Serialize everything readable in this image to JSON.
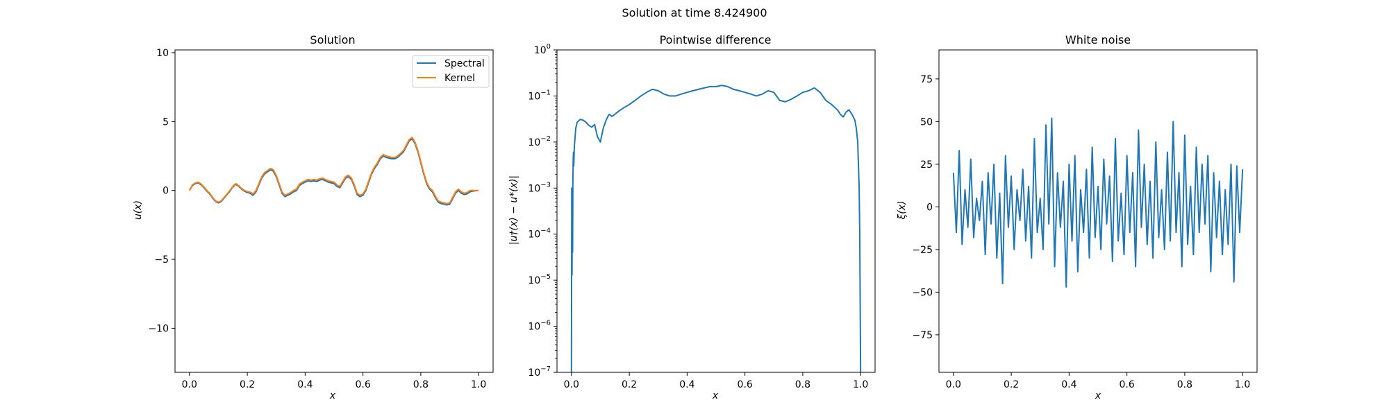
{
  "suptitle": "Solution at time 8.424900",
  "chart_data": [
    {
      "type": "line",
      "title": "Solution",
      "xlabel": "x",
      "ylabel": "u(x)",
      "xlim": [
        -0.05,
        1.05
      ],
      "ylim": [
        -13.2,
        10.2
      ],
      "xticks": [
        0.0,
        0.2,
        0.4,
        0.6,
        0.8,
        1.0
      ],
      "xtick_labels": [
        "0.0",
        "0.2",
        "0.4",
        "0.6",
        "0.8",
        "1.0"
      ],
      "yticks": [
        -10,
        -5,
        0,
        5,
        10
      ],
      "ytick_labels": [
        "−10",
        "−5",
        "0",
        "5",
        "10"
      ],
      "legend_position": "upper-right",
      "grid": false,
      "series": [
        {
          "name": "Spectral",
          "color": "#1f77b4",
          "x": [
            0.0,
            0.01,
            0.02,
            0.03,
            0.04,
            0.05,
            0.06,
            0.07,
            0.08,
            0.09,
            0.1,
            0.11,
            0.12,
            0.13,
            0.14,
            0.15,
            0.16,
            0.17,
            0.18,
            0.19,
            0.2,
            0.21,
            0.22,
            0.23,
            0.24,
            0.25,
            0.26,
            0.27,
            0.28,
            0.29,
            0.3,
            0.31,
            0.32,
            0.33,
            0.34,
            0.35,
            0.36,
            0.37,
            0.38,
            0.39,
            0.4,
            0.41,
            0.42,
            0.43,
            0.44,
            0.45,
            0.46,
            0.47,
            0.48,
            0.49,
            0.5,
            0.51,
            0.52,
            0.53,
            0.54,
            0.55,
            0.56,
            0.57,
            0.58,
            0.59,
            0.6,
            0.61,
            0.62,
            0.63,
            0.64,
            0.65,
            0.66,
            0.67,
            0.68,
            0.69,
            0.7,
            0.71,
            0.72,
            0.73,
            0.74,
            0.75,
            0.76,
            0.77,
            0.78,
            0.79,
            0.8,
            0.81,
            0.82,
            0.83,
            0.84,
            0.85,
            0.86,
            0.87,
            0.88,
            0.89,
            0.9,
            0.91,
            0.92,
            0.93,
            0.94,
            0.95,
            0.96,
            0.97,
            0.98,
            0.99,
            1.0
          ],
          "y": [
            0.0,
            0.35,
            0.5,
            0.55,
            0.42,
            0.2,
            -0.05,
            -0.25,
            -0.55,
            -0.8,
            -0.9,
            -0.8,
            -0.55,
            -0.3,
            -0.05,
            0.25,
            0.45,
            0.3,
            0.1,
            -0.05,
            -0.15,
            -0.2,
            -0.35,
            -0.1,
            0.4,
            0.9,
            1.2,
            1.35,
            1.5,
            1.4,
            1.0,
            0.4,
            -0.2,
            -0.45,
            -0.35,
            -0.25,
            -0.1,
            0.0,
            0.35,
            0.5,
            0.6,
            0.7,
            0.65,
            0.7,
            0.65,
            0.75,
            0.8,
            0.7,
            0.6,
            0.55,
            0.5,
            0.3,
            0.2,
            0.55,
            0.9,
            1.0,
            0.8,
            0.3,
            -0.3,
            -0.45,
            -0.35,
            0.0,
            0.6,
            1.2,
            1.6,
            1.9,
            2.3,
            2.5,
            2.4,
            2.35,
            2.3,
            2.3,
            2.4,
            2.6,
            2.8,
            3.2,
            3.6,
            3.75,
            3.4,
            2.8,
            2.0,
            1.2,
            0.5,
            0.1,
            -0.1,
            -0.5,
            -0.85,
            -0.95,
            -1.0,
            -1.05,
            -1.0,
            -0.6,
            -0.2,
            0.0,
            -0.2,
            -0.3,
            -0.25,
            -0.1,
            -0.05,
            -0.02,
            0.0
          ]
        },
        {
          "name": "Kernel",
          "color": "#ff7f0e",
          "x": [
            0.0,
            0.01,
            0.02,
            0.03,
            0.04,
            0.05,
            0.06,
            0.07,
            0.08,
            0.09,
            0.1,
            0.11,
            0.12,
            0.13,
            0.14,
            0.15,
            0.16,
            0.17,
            0.18,
            0.19,
            0.2,
            0.21,
            0.22,
            0.23,
            0.24,
            0.25,
            0.26,
            0.27,
            0.28,
            0.29,
            0.3,
            0.31,
            0.32,
            0.33,
            0.34,
            0.35,
            0.36,
            0.37,
            0.38,
            0.39,
            0.4,
            0.41,
            0.42,
            0.43,
            0.44,
            0.45,
            0.46,
            0.47,
            0.48,
            0.49,
            0.5,
            0.51,
            0.52,
            0.53,
            0.54,
            0.55,
            0.56,
            0.57,
            0.58,
            0.59,
            0.6,
            0.61,
            0.62,
            0.63,
            0.64,
            0.65,
            0.66,
            0.67,
            0.68,
            0.69,
            0.7,
            0.71,
            0.72,
            0.73,
            0.74,
            0.75,
            0.76,
            0.77,
            0.78,
            0.79,
            0.8,
            0.81,
            0.82,
            0.83,
            0.84,
            0.85,
            0.86,
            0.87,
            0.88,
            0.89,
            0.9,
            0.91,
            0.92,
            0.93,
            0.94,
            0.95,
            0.96,
            0.97,
            0.98,
            0.99,
            1.0
          ],
          "y": [
            0.0,
            0.4,
            0.55,
            0.6,
            0.48,
            0.25,
            0.0,
            -0.2,
            -0.5,
            -0.75,
            -0.85,
            -0.75,
            -0.5,
            -0.25,
            0.0,
            0.3,
            0.5,
            0.35,
            0.15,
            0.0,
            -0.08,
            -0.12,
            -0.25,
            0.0,
            0.5,
            1.0,
            1.3,
            1.45,
            1.6,
            1.5,
            1.1,
            0.5,
            -0.1,
            -0.35,
            -0.25,
            -0.15,
            0.0,
            0.1,
            0.45,
            0.6,
            0.7,
            0.8,
            0.75,
            0.8,
            0.75,
            0.85,
            0.9,
            0.8,
            0.7,
            0.65,
            0.6,
            0.4,
            0.3,
            0.65,
            1.0,
            1.1,
            0.9,
            0.4,
            -0.2,
            -0.35,
            -0.25,
            0.1,
            0.7,
            1.3,
            1.7,
            2.0,
            2.4,
            2.6,
            2.5,
            2.45,
            2.4,
            2.4,
            2.5,
            2.7,
            2.9,
            3.3,
            3.7,
            3.85,
            3.5,
            2.9,
            2.1,
            1.3,
            0.6,
            0.2,
            0.0,
            -0.4,
            -0.75,
            -0.85,
            -0.9,
            -0.95,
            -0.9,
            -0.5,
            -0.1,
            0.1,
            -0.1,
            -0.2,
            -0.15,
            0.0,
            0.0,
            0.0,
            0.0
          ]
        }
      ]
    },
    {
      "type": "line",
      "title": "Pointwise difference",
      "xlabel": "x",
      "ylabel": "|u†(x) − u*(x)|",
      "yscale": "log",
      "xlim": [
        -0.05,
        1.05
      ],
      "ylim": [
        1e-07,
        1
      ],
      "xticks": [
        0.0,
        0.2,
        0.4,
        0.6,
        0.8,
        1.0
      ],
      "xtick_labels": [
        "0.0",
        "0.2",
        "0.4",
        "0.6",
        "0.8",
        "1.0"
      ],
      "yticks": [
        1e-07,
        1e-06,
        1e-05,
        0.0001,
        0.001,
        0.01,
        0.1,
        1
      ],
      "ytick_bases": [
        "10",
        "10",
        "10",
        "10",
        "10",
        "10",
        "10",
        "10"
      ],
      "ytick_exponents": [
        "−7",
        "−6",
        "−5",
        "−4",
        "−3",
        "−2",
        "−1",
        "0"
      ],
      "grid": false,
      "series": [
        {
          "name": "",
          "color": "#1f77b4",
          "x": [
            0.0,
            0.001,
            0.002,
            0.003,
            0.004,
            0.005,
            0.006,
            0.007,
            0.008,
            0.01,
            0.015,
            0.02,
            0.03,
            0.04,
            0.05,
            0.06,
            0.07,
            0.08,
            0.09,
            0.1,
            0.11,
            0.12,
            0.13,
            0.14,
            0.15,
            0.16,
            0.17,
            0.18,
            0.19,
            0.2,
            0.22,
            0.24,
            0.26,
            0.28,
            0.3,
            0.32,
            0.34,
            0.36,
            0.38,
            0.4,
            0.42,
            0.44,
            0.46,
            0.48,
            0.5,
            0.52,
            0.54,
            0.56,
            0.58,
            0.6,
            0.62,
            0.64,
            0.66,
            0.68,
            0.7,
            0.72,
            0.74,
            0.76,
            0.78,
            0.8,
            0.82,
            0.84,
            0.86,
            0.88,
            0.9,
            0.92,
            0.93,
            0.94,
            0.95,
            0.96,
            0.97,
            0.98,
            0.985,
            0.99,
            0.995,
            0.997,
            0.998,
            0.999,
            1.0
          ],
          "y": [
            1e-07,
            0.001,
            1.3e-05,
            0.0004,
            4e-05,
            0.0015,
            0.004,
            0.006,
            0.003,
            0.008,
            0.02,
            0.027,
            0.031,
            0.03,
            0.027,
            0.023,
            0.021,
            0.024,
            0.013,
            0.01,
            0.02,
            0.03,
            0.04,
            0.036,
            0.04,
            0.045,
            0.05,
            0.055,
            0.06,
            0.065,
            0.08,
            0.1,
            0.12,
            0.14,
            0.13,
            0.11,
            0.1,
            0.1,
            0.11,
            0.12,
            0.13,
            0.14,
            0.15,
            0.16,
            0.16,
            0.17,
            0.16,
            0.14,
            0.13,
            0.12,
            0.11,
            0.1,
            0.11,
            0.13,
            0.12,
            0.08,
            0.075,
            0.085,
            0.1,
            0.12,
            0.13,
            0.15,
            0.12,
            0.08,
            0.065,
            0.05,
            0.04,
            0.035,
            0.045,
            0.05,
            0.04,
            0.03,
            0.02,
            0.01,
            0.001,
            0.0001,
            1e-05,
            1e-06,
            1e-07
          ]
        }
      ]
    },
    {
      "type": "line",
      "title": "White noise",
      "xlabel": "x",
      "ylabel": "ξ(x)",
      "xlim": [
        -0.05,
        1.05
      ],
      "ylim": [
        -97,
        92
      ],
      "xticks": [
        0.0,
        0.2,
        0.4,
        0.6,
        0.8,
        1.0
      ],
      "xtick_labels": [
        "0.0",
        "0.2",
        "0.4",
        "0.6",
        "0.8",
        "1.0"
      ],
      "yticks": [
        -75,
        -50,
        -25,
        0,
        25,
        50,
        75
      ],
      "ytick_labels": [
        "−75",
        "−50",
        "−25",
        "0",
        "25",
        "50",
        "75"
      ],
      "grid": false,
      "series": [
        {
          "name": "",
          "color": "#1f77b4",
          "x": [
            0.0,
            0.01,
            0.02,
            0.03,
            0.04,
            0.05,
            0.06,
            0.07,
            0.08,
            0.09,
            0.1,
            0.11,
            0.12,
            0.13,
            0.14,
            0.15,
            0.16,
            0.17,
            0.18,
            0.19,
            0.2,
            0.21,
            0.22,
            0.23,
            0.24,
            0.25,
            0.26,
            0.27,
            0.28,
            0.29,
            0.3,
            0.31,
            0.32,
            0.33,
            0.34,
            0.35,
            0.36,
            0.37,
            0.38,
            0.39,
            0.4,
            0.41,
            0.42,
            0.43,
            0.44,
            0.45,
            0.46,
            0.47,
            0.48,
            0.49,
            0.5,
            0.51,
            0.52,
            0.53,
            0.54,
            0.55,
            0.56,
            0.57,
            0.58,
            0.59,
            0.6,
            0.61,
            0.62,
            0.63,
            0.64,
            0.65,
            0.66,
            0.67,
            0.68,
            0.69,
            0.7,
            0.71,
            0.72,
            0.73,
            0.74,
            0.75,
            0.76,
            0.77,
            0.78,
            0.79,
            0.8,
            0.81,
            0.82,
            0.83,
            0.84,
            0.85,
            0.86,
            0.87,
            0.88,
            0.89,
            0.9,
            0.91,
            0.92,
            0.93,
            0.94,
            0.95,
            0.96,
            0.97,
            0.98,
            0.99,
            1.0
          ],
          "y": [
            20,
            -15,
            33,
            -22,
            10,
            -12,
            28,
            -18,
            5,
            -8,
            15,
            -28,
            20,
            -10,
            25,
            -30,
            8,
            -45,
            30,
            -12,
            18,
            -25,
            10,
            -8,
            22,
            -20,
            12,
            -30,
            40,
            -15,
            5,
            -25,
            48,
            -10,
            52,
            -35,
            20,
            -12,
            15,
            -47,
            25,
            -20,
            30,
            -38,
            10,
            -15,
            22,
            -30,
            35,
            -18,
            12,
            -25,
            28,
            -10,
            18,
            -32,
            40,
            -20,
            8,
            -28,
            30,
            -15,
            20,
            -35,
            45,
            -12,
            25,
            -22,
            15,
            -30,
            38,
            -18,
            10,
            -25,
            32,
            -20,
            50,
            -15,
            20,
            -35,
            42,
            -22,
            12,
            -28,
            35,
            -15,
            25,
            -10,
            30,
            -38,
            20,
            -18,
            15,
            -28,
            10,
            -22,
            25,
            -44,
            24,
            -15,
            22
          ]
        }
      ]
    }
  ]
}
